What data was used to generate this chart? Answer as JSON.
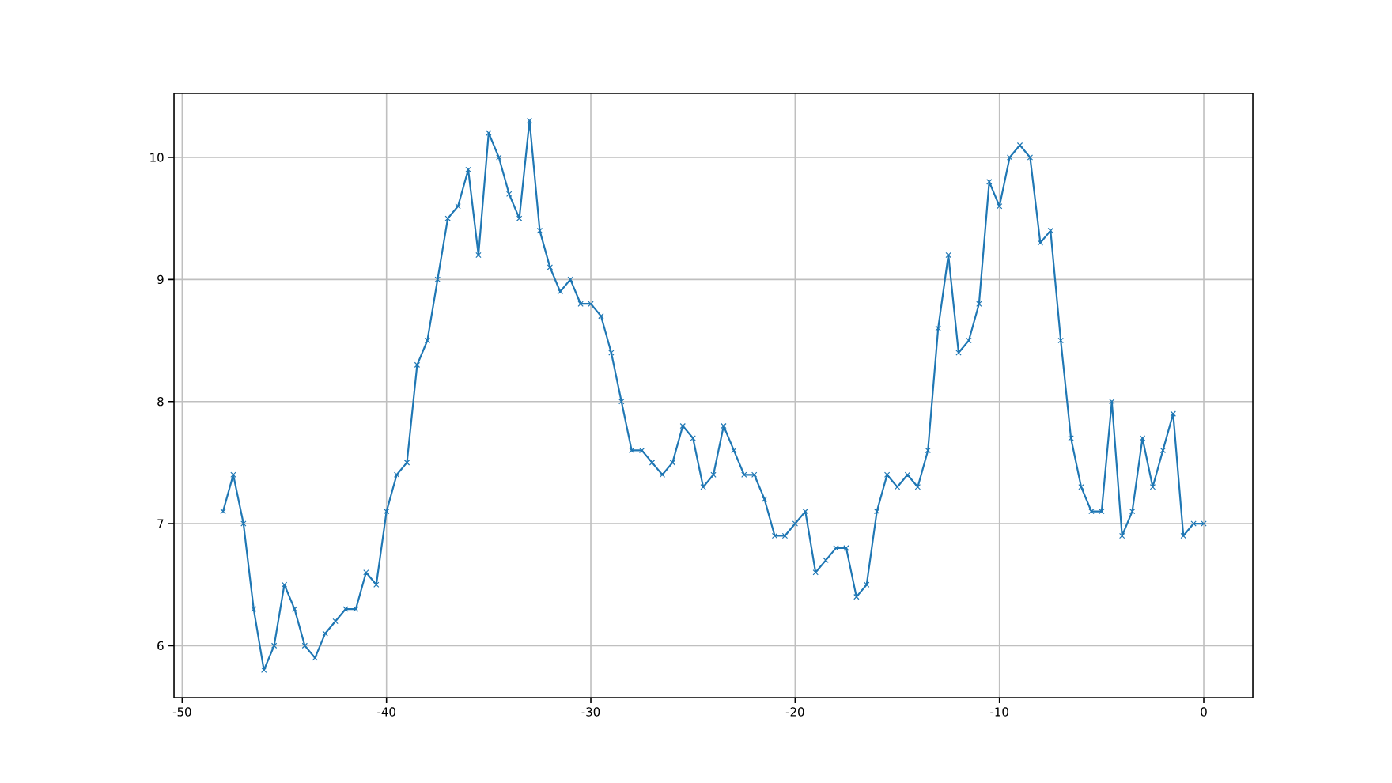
{
  "chart_data": {
    "type": "line",
    "x": [
      -48,
      -47.5,
      -47,
      -46.5,
      -46,
      -45.5,
      -45,
      -44.5,
      -44,
      -43.5,
      -43,
      -42.5,
      -42,
      -41.5,
      -41,
      -40.5,
      -40,
      -39.5,
      -39,
      -38.5,
      -38,
      -37.5,
      -37,
      -36.5,
      -36,
      -35.5,
      -35,
      -34.5,
      -34,
      -33.5,
      -33,
      -32.5,
      -32,
      -31.5,
      -31,
      -30.5,
      -30,
      -29.5,
      -29,
      -28.5,
      -28,
      -27.5,
      -27,
      -26.5,
      -26,
      -25.5,
      -25,
      -24.5,
      -24,
      -23.5,
      -23,
      -22.5,
      -22,
      -21.5,
      -21,
      -20.5,
      -20,
      -19.5,
      -19,
      -18.5,
      -18,
      -17.5,
      -17,
      -16.5,
      -16,
      -15.5,
      -15,
      -14.5,
      -14,
      -13.5,
      -13,
      -12.5,
      -12,
      -11.5,
      -11,
      -10.5,
      -10,
      -9.5,
      -9,
      -8.5,
      -8,
      -7.5,
      -7,
      -6.5,
      -6,
      -5.5,
      -5,
      -4.5,
      -4,
      -3.5,
      -3,
      -2.5,
      -2,
      -1.5,
      -1,
      -0.5,
      0
    ],
    "series": [
      {
        "color": "#1f77b4",
        "values": [
          7.1,
          7.4,
          7.0,
          6.3,
          5.8,
          6.0,
          6.5,
          6.3,
          6.0,
          5.9,
          6.1,
          6.2,
          6.3,
          6.3,
          6.6,
          6.5,
          7.1,
          7.4,
          7.5,
          8.3,
          8.5,
          9.0,
          9.5,
          9.6,
          9.9,
          9.2,
          10.2,
          10.0,
          9.7,
          9.5,
          10.3,
          9.4,
          9.1,
          8.9,
          9.0,
          8.8,
          8.8,
          8.7,
          8.4,
          8.0,
          7.6,
          7.6,
          7.5,
          7.4,
          7.5,
          7.8,
          7.7,
          7.3,
          7.4,
          7.8,
          7.6,
          7.4,
          7.4,
          7.2,
          6.9,
          6.9,
          7.0,
          7.1,
          6.6,
          6.7,
          6.8,
          6.8,
          6.4,
          6.5,
          7.1,
          7.4,
          7.3,
          7.4,
          7.3,
          7.6,
          8.6,
          9.2,
          8.4,
          8.5,
          8.8,
          9.8,
          9.6,
          10.0,
          10.1,
          10.0,
          9.3,
          9.4,
          8.5,
          7.7,
          7.3,
          7.1,
          7.1,
          8.0,
          6.9,
          7.1,
          7.7,
          7.3,
          7.6,
          7.9,
          6.9,
          7.0,
          7.0
        ]
      }
    ],
    "xlim": [
      -50.4,
      2.4
    ],
    "ylim": [
      5.575,
      10.525
    ],
    "xticks": [
      -50,
      -40,
      -30,
      -20,
      -10,
      0
    ],
    "yticks": [
      6,
      7,
      8,
      9,
      10
    ],
    "grid": true,
    "marker": "cross",
    "line_style": "solid"
  }
}
